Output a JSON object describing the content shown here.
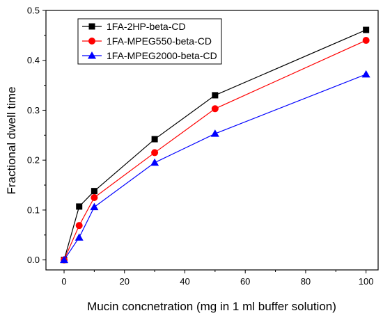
{
  "chart_data": {
    "type": "line",
    "xlabel": "Mucin concnetration (mg in 1 ml buffer solution)",
    "ylabel": "Fractional dwell time",
    "xlim": [
      -6,
      104
    ],
    "ylim": [
      -0.02,
      0.5
    ],
    "x_ticks": [
      0,
      20,
      40,
      60,
      80,
      100
    ],
    "y_ticks": [
      0.0,
      0.1,
      0.2,
      0.3,
      0.4,
      0.5
    ],
    "x_tick_labels": [
      "0",
      "20",
      "40",
      "60",
      "80",
      "100"
    ],
    "y_tick_labels": [
      "0.0",
      "0.1",
      "0.2",
      "0.3",
      "0.4",
      "0.5"
    ],
    "grid": false,
    "legend_position": "top-left",
    "x": [
      0,
      5,
      10,
      30,
      50,
      100
    ],
    "series": [
      {
        "name": "1FA-2HP-beta-CD",
        "values": [
          0.0,
          0.107,
          0.138,
          0.242,
          0.33,
          0.461
        ],
        "color": "#000000",
        "marker": "square"
      },
      {
        "name": "1FA-MPEG550-beta-CD",
        "values": [
          0.0,
          0.069,
          0.125,
          0.215,
          0.303,
          0.44
        ],
        "color": "#ff0000",
        "marker": "circle"
      },
      {
        "name": "1FA-MPEG2000-beta-CD",
        "values": [
          0.0,
          0.045,
          0.106,
          0.195,
          0.253,
          0.372
        ],
        "color": "#0000ff",
        "marker": "triangle"
      }
    ]
  }
}
